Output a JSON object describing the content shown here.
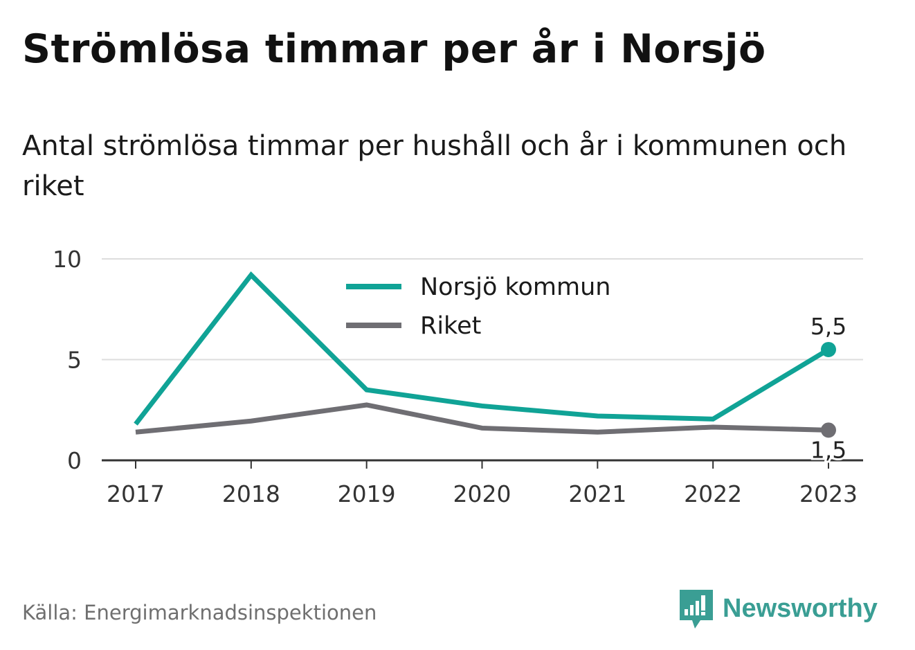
{
  "header": {
    "title": "Strömlösa timmar per år i Norsjö",
    "subtitle": "Antal strömlösa timmar per hushåll och år i kommunen och riket"
  },
  "footer": {
    "source": "Källa: Energimarknadsinspektionen",
    "brand": "Newsworthy"
  },
  "colors": {
    "norsjo": "#10a396",
    "riket": "#6f6e73",
    "grid": "#dddddd",
    "axis": "#333333",
    "brand": "#3a9e94"
  },
  "chart_data": {
    "type": "line",
    "x": [
      "2017",
      "2018",
      "2019",
      "2020",
      "2021",
      "2022",
      "2023"
    ],
    "ylim": [
      0,
      10
    ],
    "yticks": [
      "0",
      "5",
      "10"
    ],
    "grid": true,
    "legend": "top-center",
    "series": [
      {
        "name": "Norsjö kommun",
        "color": "#10a396",
        "values": [
          1.8,
          9.2,
          3.5,
          2.7,
          2.2,
          2.05,
          5.5
        ],
        "end_label": "5,5"
      },
      {
        "name": "Riket",
        "color": "#6f6e73",
        "values": [
          1.4,
          1.95,
          2.75,
          1.6,
          1.4,
          1.65,
          1.5
        ],
        "end_label": "1,5"
      }
    ]
  }
}
